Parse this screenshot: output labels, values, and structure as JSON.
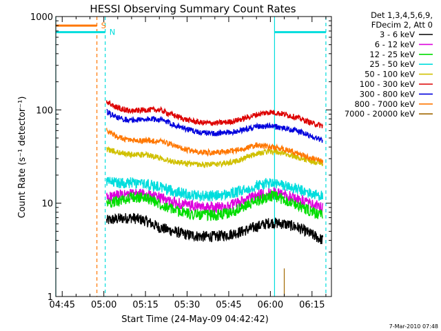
{
  "chart_data": {
    "type": "line",
    "title": "HESSI Observing Summary Count Rates",
    "xlabel": "Start Time (24-May-09 04:42:42)",
    "ylabel": "Count Rate (s⁻¹ detector⁻¹)",
    "x_unit": "UT (hh:mm), 24-May-2009",
    "xlim": [
      "04:42:42",
      "06:22:00"
    ],
    "ylim": [
      1,
      1000
    ],
    "y_scale": "log",
    "grid": false,
    "legend_position": "outside-right",
    "x_ticks": [
      "04:45",
      "05:00",
      "05:15",
      "05:30",
      "05:45",
      "06:00",
      "06:15"
    ],
    "y_ticks": [
      "1",
      "10",
      "100",
      "1000"
    ],
    "legend_header": [
      "Det 1,3,4,5,6,9,",
      "FDecim 2, Att 0"
    ],
    "series": [
      {
        "name": "3 - 6 keV",
        "color": "#000000",
        "x": [
          "05:01",
          "05:05",
          "05:10",
          "05:15",
          "05:20",
          "05:25",
          "05:30",
          "05:35",
          "05:40",
          "05:45",
          "05:50",
          "05:55",
          "06:00",
          "06:05",
          "06:10",
          "06:15",
          "06:19"
        ],
        "y": [
          6.5,
          6.8,
          7.0,
          6.5,
          5.5,
          5.0,
          4.6,
          4.4,
          4.4,
          4.6,
          5.0,
          5.6,
          6.2,
          6.0,
          5.5,
          4.6,
          4.0
        ]
      },
      {
        "name": "6 - 12 keV",
        "color": "#dd00dd",
        "x": [
          "05:01",
          "05:05",
          "05:10",
          "05:15",
          "05:20",
          "05:25",
          "05:30",
          "05:35",
          "05:40",
          "05:45",
          "05:50",
          "05:55",
          "06:00",
          "06:05",
          "06:10",
          "06:15",
          "06:19"
        ],
        "y": [
          11.5,
          12.0,
          12.5,
          12.5,
          11.5,
          10.2,
          9.5,
          9.0,
          9.0,
          9.3,
          10.5,
          12.0,
          13.0,
          12.5,
          11.0,
          9.6,
          9.0
        ]
      },
      {
        "name": "12 - 25 keV",
        "color": "#00dd00",
        "x": [
          "05:01",
          "05:05",
          "05:10",
          "05:15",
          "05:20",
          "05:25",
          "05:30",
          "05:35",
          "05:40",
          "05:45",
          "05:50",
          "05:55",
          "06:00",
          "06:05",
          "06:10",
          "06:15",
          "06:19"
        ],
        "y": [
          10.0,
          10.5,
          11.5,
          11.5,
          10.0,
          8.5,
          7.8,
          7.5,
          7.4,
          7.8,
          9.0,
          10.5,
          12.0,
          11.0,
          9.5,
          8.0,
          7.3
        ]
      },
      {
        "name": "25 - 50 keV",
        "color": "#00dddd",
        "x": [
          "05:01",
          "05:05",
          "05:10",
          "05:15",
          "05:20",
          "05:25",
          "05:30",
          "05:35",
          "05:40",
          "05:45",
          "05:50",
          "05:55",
          "06:00",
          "06:05",
          "06:10",
          "06:15",
          "06:19"
        ],
        "y": [
          17.0,
          16.5,
          16.5,
          16.0,
          15.0,
          13.5,
          12.5,
          12.0,
          12.0,
          12.5,
          13.5,
          15.5,
          16.5,
          15.5,
          14.0,
          12.5,
          12.0
        ]
      },
      {
        "name": "50 - 100 keV",
        "color": "#d0c000",
        "x": [
          "05:01",
          "05:05",
          "05:10",
          "05:15",
          "05:20",
          "05:25",
          "05:30",
          "05:35",
          "05:40",
          "05:45",
          "05:50",
          "05:55",
          "06:00",
          "06:05",
          "06:10",
          "06:15",
          "06:19"
        ],
        "y": [
          38,
          35,
          33,
          33,
          31,
          28,
          26.5,
          26,
          26,
          27,
          30,
          34,
          36,
          34,
          31,
          28,
          27
        ]
      },
      {
        "name": "100 - 300 keV",
        "color": "#dd0000",
        "x": [
          "05:01",
          "05:05",
          "05:10",
          "05:15",
          "05:20",
          "05:25",
          "05:30",
          "05:35",
          "05:40",
          "05:45",
          "05:50",
          "05:55",
          "06:00",
          "06:05",
          "06:10",
          "06:15",
          "06:19"
        ],
        "y": [
          120,
          105,
          97,
          100,
          100,
          88,
          78,
          73,
          72,
          74,
          80,
          89,
          95,
          90,
          82,
          72,
          67
        ]
      },
      {
        "name": "300 - 800 keV",
        "color": "#0000dd",
        "x": [
          "05:01",
          "05:05",
          "05:10",
          "05:15",
          "05:20",
          "05:25",
          "05:30",
          "05:35",
          "05:40",
          "05:45",
          "05:50",
          "05:55",
          "06:00",
          "06:05",
          "06:10",
          "06:15",
          "06:19"
        ],
        "y": [
          95,
          82,
          77,
          80,
          79,
          70,
          62,
          57,
          56,
          57,
          61,
          66,
          67,
          64,
          59,
          52,
          47
        ]
      },
      {
        "name": "800 - 7000 keV",
        "color": "#ff7700",
        "x": [
          "05:01",
          "05:05",
          "05:10",
          "05:15",
          "05:20",
          "05:25",
          "05:30",
          "05:35",
          "05:40",
          "05:45",
          "05:50",
          "05:55",
          "06:00",
          "06:05",
          "06:10",
          "06:15",
          "06:19"
        ],
        "y": [
          60,
          51,
          47,
          47,
          46,
          42,
          37,
          35,
          35,
          36,
          38,
          42,
          40,
          38,
          34,
          30,
          28
        ]
      },
      {
        "name": "7000 - 20000 keV",
        "color": "#a06800",
        "x": [
          "06:05"
        ],
        "y": [
          2
        ]
      }
    ],
    "annotations": [
      {
        "label": "S",
        "type": "saa-bar",
        "color": "#ff7700",
        "x_start": "04:42:42",
        "x_end": "04:57:30",
        "level": 800
      },
      {
        "label": "N",
        "type": "night-bar",
        "color": "#00dddd",
        "x_start": "04:42:42",
        "x_end": "05:00:30",
        "level": 680
      },
      {
        "label": "",
        "type": "night-bar",
        "color": "#00dddd",
        "x_start": "06:01:30",
        "x_end": "06:20:00",
        "level": 680
      }
    ],
    "vlines": [
      {
        "x": "04:42:42",
        "color": "#00dddd",
        "style": "solid"
      },
      {
        "x": "04:57:30",
        "color": "#ff7700",
        "style": "dashed"
      },
      {
        "x": "05:00:30",
        "color": "#00dddd",
        "style": "dashed"
      },
      {
        "x": "06:01:30",
        "color": "#00dddd",
        "style": "solid"
      },
      {
        "x": "06:20:00",
        "color": "#00dddd",
        "style": "dashed"
      }
    ]
  },
  "footer": {
    "timestamp": "7-Mar-2010 07:48"
  }
}
